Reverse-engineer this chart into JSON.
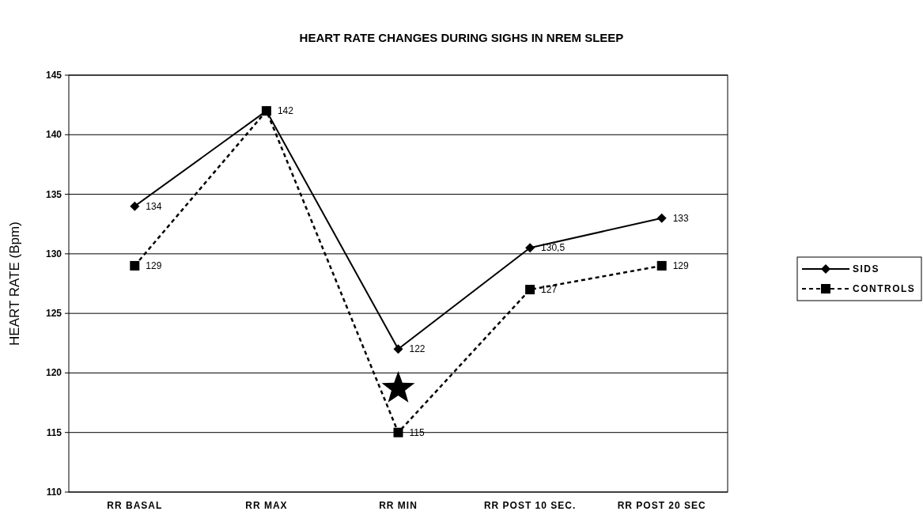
{
  "chart_data": {
    "type": "line",
    "title": "HEART RATE CHANGES DURING SIGHS IN NREM SLEEP",
    "ylabel": "HEART RATE (Bpm)",
    "categories": [
      "RR BASAL",
      "RR MAX",
      "RR MIN",
      "RR POST 10 SEC.",
      "RR POST 20 SEC"
    ],
    "series": [
      {
        "name": "SIDS",
        "color": "#000000",
        "values": [
          134,
          142,
          122,
          130.5,
          133
        ],
        "marker": "diamond",
        "line_style": "solid",
        "value_labels": [
          "134",
          "142",
          "122",
          "130,5",
          "133"
        ]
      },
      {
        "name": "CONTROLS",
        "color": "#000000",
        "values": [
          129,
          142,
          115,
          127,
          129
        ],
        "marker": "square",
        "line_style": "dashed",
        "value_labels": [
          "129",
          null,
          "115",
          "127",
          "129"
        ]
      }
    ],
    "ylim": [
      110,
      145
    ],
    "yticks": [
      110,
      115,
      120,
      125,
      130,
      135,
      140,
      145
    ],
    "grid": "y",
    "legend": "right"
  }
}
